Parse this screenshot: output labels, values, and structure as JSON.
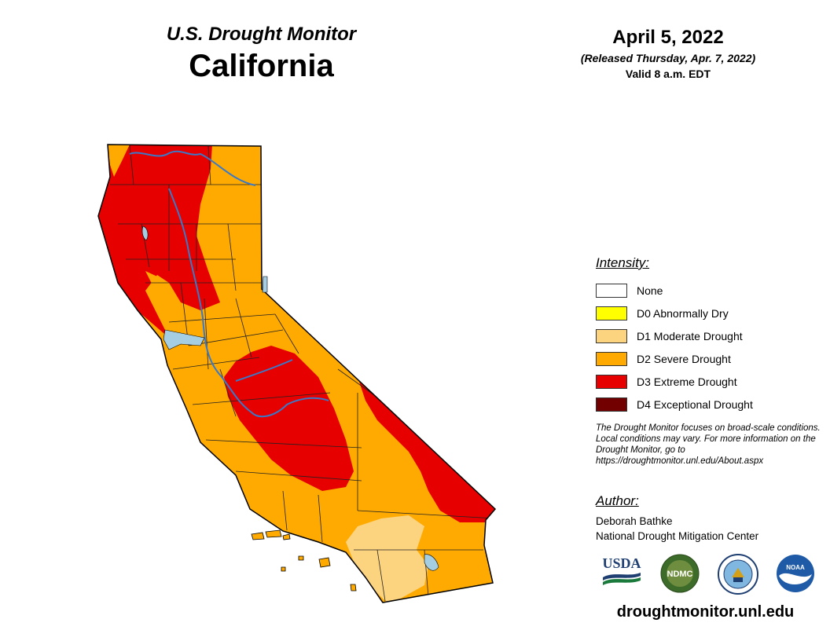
{
  "header": {
    "supertitle": "U.S. Drought Monitor",
    "title": "California",
    "date": "April 5, 2022",
    "released": "(Released Thursday, Apr. 7, 2022)",
    "valid": "Valid 8 a.m. EDT"
  },
  "legend": {
    "title": "Intensity:",
    "items": [
      {
        "label": "None",
        "color": "#ffffff"
      },
      {
        "label": "D0 Abnormally Dry",
        "color": "#ffff00"
      },
      {
        "label": "D1 Moderate Drought",
        "color": "#fcd37f"
      },
      {
        "label": "D2 Severe Drought",
        "color": "#ffaa00"
      },
      {
        "label": "D3 Extreme Drought",
        "color": "#e60000"
      },
      {
        "label": "D4 Exceptional Drought",
        "color": "#730000"
      }
    ]
  },
  "note": "The Drought Monitor focuses on broad-scale conditions. Local conditions may vary. For more information on the Drought Monitor, go to https://droughtmonitor.unl.edu/About.aspx",
  "author": {
    "title": "Author:",
    "name": "Deborah Bathke",
    "org": "National Drought Mitigation Center"
  },
  "logos": {
    "usda": "USDA",
    "ndmc": "NDMC",
    "doc": "dept-of-commerce-seal",
    "noaa": "NOAA"
  },
  "url": "droughtmonitor.unl.edu",
  "colors": {
    "d1": "#fcd37f",
    "d2": "#ffaa00",
    "d3": "#e60000",
    "water": "#a6cee3",
    "river": "#3a78c8",
    "county_line": "#222222"
  }
}
